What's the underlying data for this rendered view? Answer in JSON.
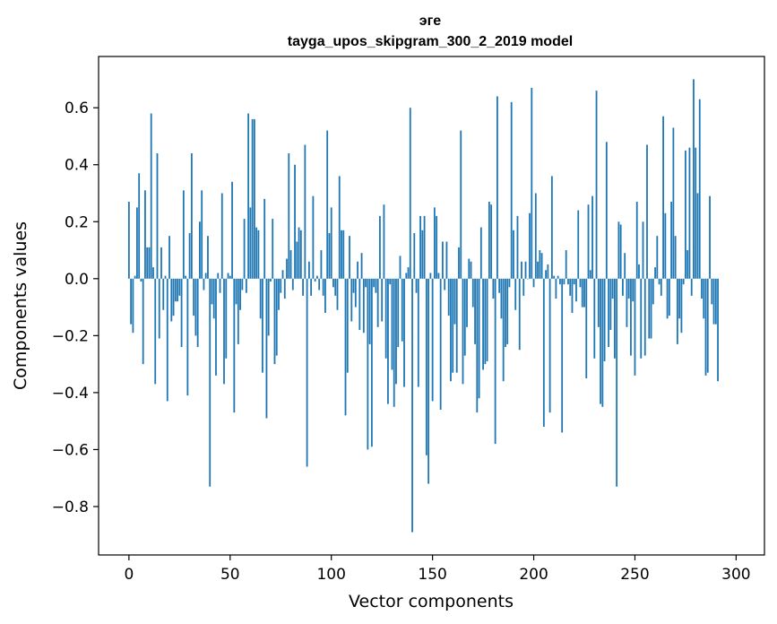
{
  "chart_data": {
    "type": "bar",
    "title_line1": "эге",
    "title_line2": "tayga_upos_skipgram_300_2_2019 model",
    "xlabel": "Vector components",
    "ylabel": "Components values",
    "xlim": [
      -15,
      314
    ],
    "ylim": [
      -0.97,
      0.78
    ],
    "x_ticks": [
      0,
      50,
      100,
      150,
      200,
      250,
      300
    ],
    "x_tick_labels": [
      "0",
      "50",
      "100",
      "150",
      "200",
      "250",
      "300"
    ],
    "y_ticks": [
      0.6,
      0.4,
      0.2,
      0.0,
      -0.2,
      -0.4,
      -0.6,
      -0.8
    ],
    "y_tick_labels": [
      "0.6",
      "0.4",
      "0.2",
      "0.0",
      "−0.2",
      "−0.4",
      "−0.6",
      "−0.8"
    ],
    "bar_color": "#1f77b4",
    "values": [
      0.27,
      -0.16,
      -0.19,
      0.01,
      0.25,
      0.37,
      -0.01,
      -0.3,
      0.31,
      0.11,
      0.11,
      0.58,
      0.04,
      -0.37,
      0.44,
      -0.21,
      0.11,
      -0.11,
      0.01,
      -0.43,
      0.15,
      -0.15,
      -0.13,
      -0.08,
      -0.08,
      -0.06,
      -0.24,
      0.31,
      0.01,
      -0.41,
      0.16,
      0.44,
      -0.13,
      -0.2,
      -0.24,
      0.2,
      0.31,
      -0.04,
      0.02,
      0.15,
      -0.73,
      -0.09,
      -0.14,
      -0.34,
      0.02,
      -0.05,
      0.3,
      -0.37,
      -0.28,
      0.02,
      0.01,
      0.34,
      -0.47,
      -0.09,
      -0.23,
      -0.11,
      -0.04,
      0.21,
      -0.05,
      0.58,
      0.25,
      0.56,
      0.56,
      0.18,
      0.17,
      -0.14,
      -0.33,
      0.28,
      -0.49,
      -0.2,
      -0.01,
      0.21,
      -0.3,
      -0.27,
      -0.11,
      -0.05,
      0.03,
      -0.07,
      0.07,
      0.44,
      0.1,
      -0.04,
      0.4,
      0.13,
      0.18,
      0.17,
      -0.06,
      0.47,
      -0.66,
      0.06,
      -0.06,
      0.29,
      -0.01,
      0.01,
      -0.04,
      0.1,
      -0.06,
      -0.12,
      0.52,
      0.16,
      0.25,
      -0.03,
      -0.06,
      -0.11,
      0.36,
      0.17,
      0.17,
      -0.48,
      -0.33,
      0.15,
      -0.15,
      -0.05,
      -0.1,
      0.06,
      -0.18,
      0.09,
      -0.19,
      -0.03,
      -0.6,
      -0.23,
      -0.59,
      -0.03,
      -0.05,
      -0.17,
      0.22,
      -0.15,
      0.26,
      -0.28,
      -0.44,
      -0.02,
      -0.32,
      -0.45,
      -0.37,
      -0.24,
      0.08,
      -0.22,
      -0.38,
      0.02,
      0.04,
      0.6,
      -0.89,
      0.16,
      -0.05,
      -0.38,
      0.22,
      0.17,
      0.22,
      -0.62,
      -0.72,
      0.02,
      -0.43,
      0.25,
      0.22,
      0.02,
      -0.46,
      0.13,
      -0.04,
      0.13,
      -0.13,
      -0.36,
      -0.33,
      -0.16,
      -0.33,
      0.11,
      0.52,
      -0.37,
      -0.27,
      -0.17,
      0.07,
      0.06,
      -0.1,
      -0.23,
      -0.47,
      -0.42,
      0.18,
      -0.32,
      -0.3,
      -0.29,
      0.27,
      0.26,
      -0.07,
      -0.58,
      0.64,
      -0.05,
      -0.14,
      -0.36,
      -0.24,
      -0.23,
      -0.03,
      0.62,
      0.17,
      -0.11,
      0.22,
      -0.25,
      0.06,
      -0.06,
      0.06,
      0.0,
      0.23,
      0.67,
      -0.03,
      0.3,
      0.06,
      0.1,
      0.09,
      -0.52,
      0.03,
      0.05,
      -0.47,
      0.36,
      0.01,
      -0.07,
      0.01,
      -0.02,
      -0.54,
      -0.02,
      0.1,
      -0.02,
      -0.06,
      -0.12,
      -0.02,
      -0.08,
      0.24,
      -0.03,
      -0.1,
      -0.1,
      -0.35,
      0.26,
      0.03,
      0.29,
      -0.28,
      0.66,
      -0.17,
      -0.44,
      -0.45,
      -0.29,
      0.48,
      -0.24,
      -0.18,
      -0.07,
      -0.28,
      -0.73,
      0.2,
      0.19,
      -0.06,
      0.09,
      -0.17,
      -0.07,
      -0.27,
      -0.08,
      -0.34,
      0.27,
      0.05,
      -0.28,
      0.2,
      -0.27,
      0.47,
      -0.21,
      -0.21,
      -0.09,
      0.04,
      0.15,
      -0.02,
      -0.06,
      0.57,
      0.23,
      -0.14,
      -0.13,
      0.27,
      0.53,
      0.15,
      -0.23,
      -0.14,
      -0.19,
      -0.02,
      0.45,
      0.1,
      0.46,
      -0.06,
      0.7,
      0.46,
      0.3,
      0.63,
      -0.07,
      -0.14,
      -0.34,
      -0.33,
      0.29,
      -0.09,
      -0.16,
      -0.16,
      -0.36
    ]
  }
}
